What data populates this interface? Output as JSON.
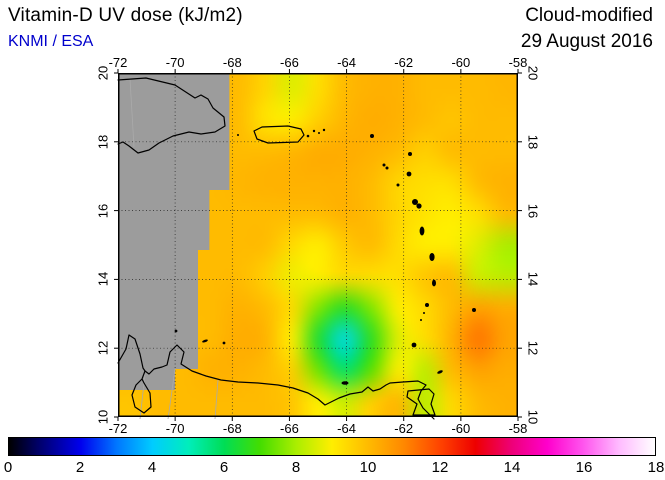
{
  "header": {
    "title": "Vitamin-D UV dose (kJ/m2)",
    "source": "KNMI / ESA",
    "mode_label": "Cloud-modified",
    "date_label": "29 August 2016"
  },
  "colors": {
    "source_text": "#0000cc",
    "no_data_gray": "#9c9c9c",
    "coastline": "#000000"
  },
  "chart_data": {
    "type": "heatmap",
    "title": "Vitamin-D UV dose (kJ/m2)",
    "subtitle": "Cloud-modified 29 August 2016",
    "units": "kJ/m2",
    "projection": "lat-lon",
    "region": "Caribbean",
    "lon_range": [
      -72,
      -58
    ],
    "lat_range": [
      10,
      20
    ],
    "lon_ticks": [
      -72,
      -70,
      -68,
      -66,
      -64,
      -62,
      -60,
      -58
    ],
    "lat_ticks": [
      10,
      12,
      14,
      16,
      18,
      20
    ],
    "grid_step_deg": 2,
    "no_data_color": "#9c9c9c",
    "grid": {
      "lons": [
        -72,
        -71,
        -70,
        -69,
        -68,
        -67,
        -66,
        -65,
        -64,
        -63,
        -62,
        -61,
        -60,
        -59,
        -58
      ],
      "lats": [
        20,
        19,
        18,
        17,
        16,
        15,
        14,
        13,
        12,
        11,
        10
      ],
      "values": [
        [
          null,
          null,
          null,
          null,
          10.0,
          9.5,
          8.6,
          9.3,
          10.0,
          10.2,
          10.2,
          10.0,
          10.0,
          10.0,
          10.1
        ],
        [
          null,
          null,
          null,
          null,
          10.0,
          9.2,
          9.0,
          9.6,
          10.1,
          10.3,
          10.2,
          10.0,
          9.8,
          10.0,
          10.0
        ],
        [
          null,
          null,
          null,
          null,
          10.0,
          10.0,
          10.1,
          10.3,
          10.3,
          10.2,
          10.0,
          9.6,
          10.0,
          10.0,
          10.0
        ],
        [
          null,
          null,
          null,
          null,
          10.1,
          10.2,
          10.2,
          10.2,
          10.2,
          10.0,
          9.5,
          9.3,
          9.3,
          10.0,
          10.2
        ],
        [
          null,
          null,
          null,
          null,
          10.0,
          10.0,
          10.0,
          10.0,
          10.2,
          10.0,
          9.5,
          9.2,
          9.0,
          9.3,
          10.0
        ],
        [
          null,
          null,
          null,
          null,
          10.0,
          10.0,
          9.4,
          9.0,
          9.7,
          10.0,
          9.4,
          9.0,
          9.0,
          8.6,
          8.0
        ],
        [
          null,
          null,
          null,
          null,
          10.0,
          9.6,
          8.8,
          9.0,
          9.4,
          9.3,
          9.3,
          9.8,
          10.0,
          8.4,
          8.2
        ],
        [
          null,
          null,
          null,
          null,
          10.2,
          10.0,
          9.4,
          7.6,
          6.6,
          7.6,
          9.0,
          9.4,
          10.0,
          10.5,
          10.3
        ],
        [
          null,
          null,
          null,
          null,
          10.3,
          10.2,
          9.0,
          6.4,
          4.4,
          6.6,
          8.6,
          9.3,
          10.2,
          11.3,
          10.5
        ],
        [
          10.0,
          10.0,
          10.0,
          10.2,
          10.2,
          10.0,
          9.6,
          7.4,
          5.8,
          7.2,
          9.0,
          8.2,
          10.0,
          10.5,
          10.3
        ],
        [
          9.8,
          10.0,
          10.0,
          10.0,
          10.0,
          10.0,
          9.8,
          9.0,
          8.4,
          9.6,
          10.1,
          8.2,
          9.4,
          10.0,
          10.2
        ]
      ]
    },
    "colorbar": {
      "min": 0,
      "max": 18,
      "tick_labels": [
        0,
        2,
        4,
        6,
        8,
        10,
        12,
        14,
        16,
        18
      ],
      "stops": [
        {
          "v": 0,
          "c": "#000000"
        },
        {
          "v": 0.8,
          "c": "#000066"
        },
        {
          "v": 2,
          "c": "#0000ee"
        },
        {
          "v": 3,
          "c": "#0077ff"
        },
        {
          "v": 4,
          "c": "#00ccff"
        },
        {
          "v": 5,
          "c": "#00eebb"
        },
        {
          "v": 6,
          "c": "#00dd55"
        },
        {
          "v": 7,
          "c": "#44dd00"
        },
        {
          "v": 8,
          "c": "#aaee00"
        },
        {
          "v": 9,
          "c": "#ffee00"
        },
        {
          "v": 10,
          "c": "#ffbb00"
        },
        {
          "v": 11,
          "c": "#ff8800"
        },
        {
          "v": 12,
          "c": "#ff4400"
        },
        {
          "v": 13,
          "c": "#ee0000"
        },
        {
          "v": 14,
          "c": "#ee0077"
        },
        {
          "v": 15,
          "c": "#ff00cc"
        },
        {
          "v": 16,
          "c": "#ff55ee"
        },
        {
          "v": 17,
          "c": "#ffbbff"
        },
        {
          "v": 18,
          "c": "#ffffff"
        }
      ]
    }
  }
}
